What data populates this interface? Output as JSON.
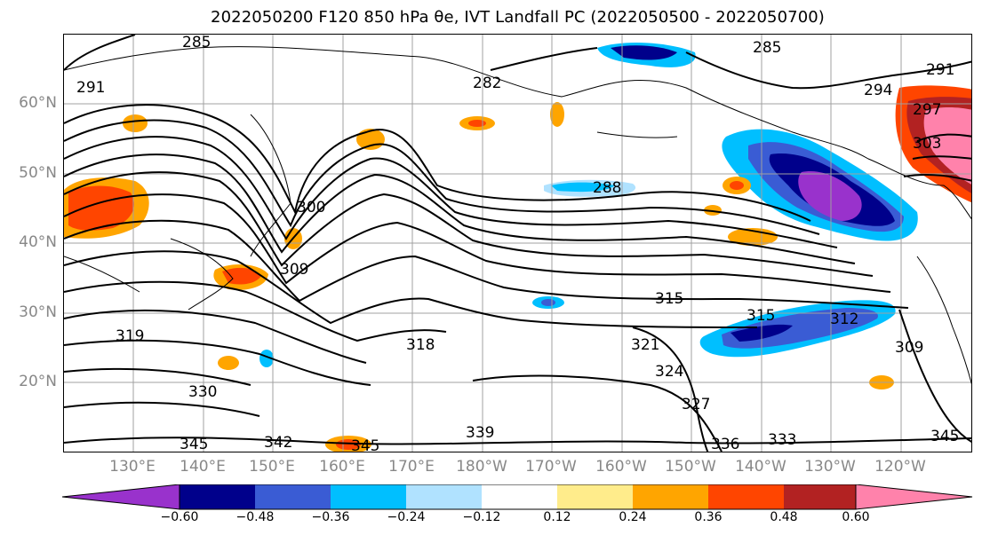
{
  "title": "2022050200 F120 850 hPa θe, IVT Landfall PC (2022050500 - 2022050700)",
  "lat_labels": [
    "60°N",
    "50°N",
    "40°N",
    "30°N",
    "20°N"
  ],
  "lon_labels": [
    "130°E",
    "140°E",
    "150°E",
    "160°E",
    "170°E",
    "180°W",
    "170°W",
    "160°W",
    "150°W",
    "140°W",
    "130°W",
    "120°W"
  ],
  "colorbar": {
    "ticks": [
      "−0.60",
      "−0.48",
      "−0.36",
      "−0.24",
      "−0.12",
      "0.12",
      "0.24",
      "0.36",
      "0.48",
      "0.60"
    ],
    "colors": [
      "#9932cc",
      "#00008b",
      "#3a5cd4",
      "#00bfff",
      "#b0e2ff",
      "#ffffff",
      "#ffec8b",
      "#ffa500",
      "#ff4500",
      "#b22222",
      "#ff82ab"
    ]
  },
  "contour_labels": [
    "285",
    "291",
    "282",
    "285",
    "291",
    "294",
    "297",
    "303",
    "288",
    "300",
    "309",
    "315",
    "315",
    "312",
    "318",
    "321",
    "324",
    "327",
    "309",
    "330",
    "345",
    "342",
    "345",
    "339",
    "336",
    "333",
    "345",
    "319"
  ]
}
